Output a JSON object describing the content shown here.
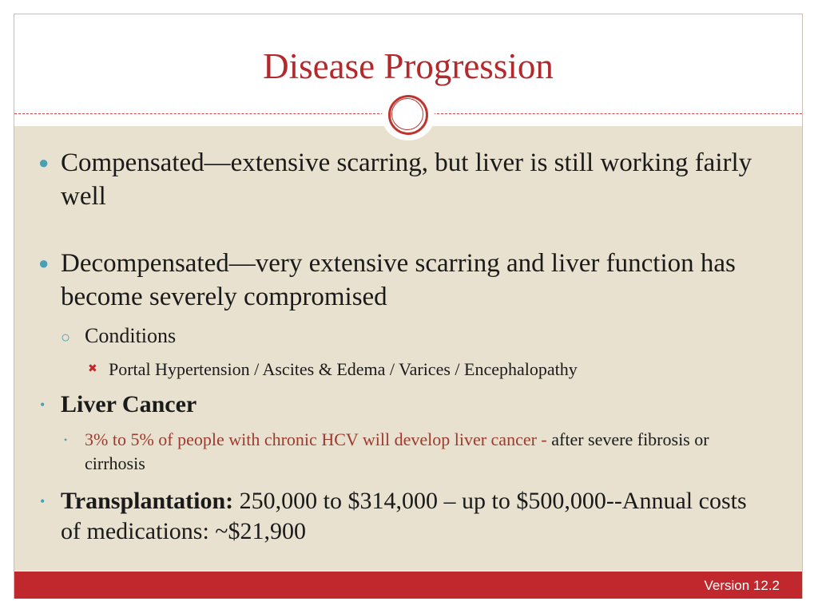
{
  "slide": {
    "title": "Disease Progression",
    "footer_version": "Version 12.2",
    "colors": {
      "accent": "#c0282d",
      "title": "#b22a2e",
      "content_bg": "#e8e1cf",
      "bullet": "#4aa0b2"
    },
    "bullets": {
      "compensated": "Compensated—extensive scarring, but liver is still working fairly well",
      "decompensated": "Decompensated—very extensive scarring and liver function has become severely compromised",
      "conditions_label": "Conditions",
      "conditions_list": "Portal Hypertension / Ascites & Edema / Varices / Encephalopathy",
      "liver_cancer": "Liver Cancer",
      "liver_cancer_detail_red": "3% to 5% of people with chronic HCV will develop liver cancer -",
      "liver_cancer_detail_black": " after severe fibrosis or cirrhosis",
      "transplant_label": "Transplantation:",
      "transplant_detail": " 250,000 to $314,000 – up to $500,000--Annual costs of medications:  ~$21,900"
    },
    "icons": {
      "ornament": "double-ring-icon",
      "bullet_level1": "round-bullet-icon",
      "bullet_level2": "hollow-circle-bullet-icon",
      "bullet_level3": "red-x-bullet-icon"
    }
  }
}
